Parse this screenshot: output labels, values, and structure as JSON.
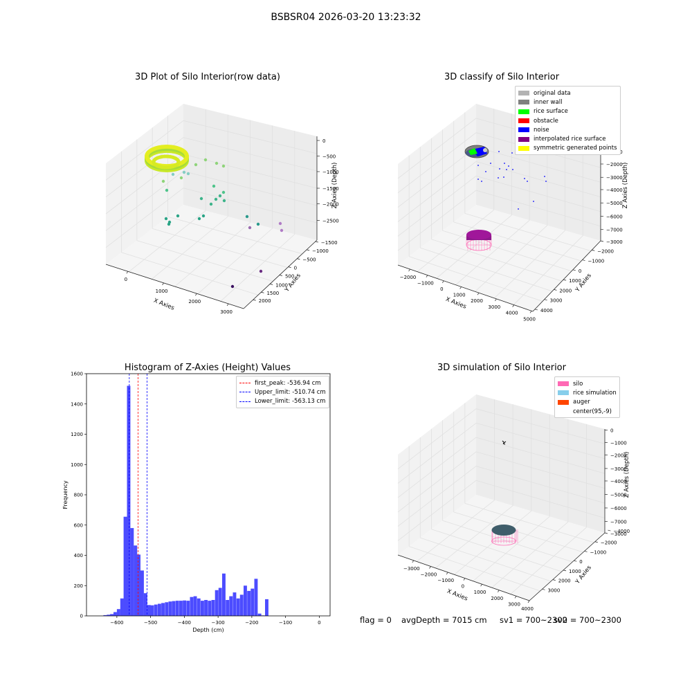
{
  "figure": {
    "suptitle": "BSBSR04 2026-03-20 13:23:32",
    "status": {
      "flag": "flag = 0",
      "avg_depth": "avgDepth = 7015 cm",
      "sv1": "sv1 = 700~2300",
      "sv2": "sv2 = 700~2300"
    }
  },
  "chart_data": [
    {
      "type": "scatter",
      "title": "3D Plot of Silo Interior(row data)",
      "xlabel": "X Axies",
      "ylabel": "Y Axies",
      "zlabel": "Z Axies (Depth)",
      "xticks": [
        "0",
        "1000",
        "2000",
        "3000"
      ],
      "yticks": [
        "2000",
        "1500",
        "1000",
        "500",
        "0",
        "−500",
        "−1000",
        "−1500"
      ],
      "zticks": [
        "0",
        "−500",
        "−1000",
        "−1500",
        "−2000",
        "−2500"
      ]
    },
    {
      "type": "scatter",
      "title": "3D classify of Silo Interior",
      "xlabel": "X Axies",
      "ylabel": "Y Axies",
      "zlabel": "Z Axies (Depth)",
      "xticks": [
        "−2000",
        "−1000",
        "0",
        "1000",
        "2000",
        "3000",
        "4000",
        "5000"
      ],
      "yticks": [
        "4000",
        "3000",
        "2000",
        "1000",
        "0",
        "−1000",
        "−2000",
        "−3000"
      ],
      "zticks": [
        "0",
        "−1000",
        "−2000",
        "−3000",
        "−4000",
        "−5000",
        "−6000",
        "−7000"
      ],
      "legend": [
        {
          "label": "original data",
          "color": "#b3b3b3"
        },
        {
          "label": "inner wall",
          "color": "#808080"
        },
        {
          "label": "rice surface",
          "color": "#00ff00"
        },
        {
          "label": "obstacle",
          "color": "#ff0000"
        },
        {
          "label": "noise",
          "color": "#0000ff"
        },
        {
          "label": "interpolated rice surface",
          "color": "#800080"
        },
        {
          "label": "symmetric generated points",
          "color": "#ffff00"
        }
      ]
    },
    {
      "type": "bar",
      "title": "Histogram of Z-Axies (Height) Values",
      "xlabel": "Depth (cm)",
      "ylabel": "Frequency",
      "xlim": [
        -690,
        32
      ],
      "ylim": [
        0,
        1600
      ],
      "xticks": [
        -600,
        -500,
        -400,
        -300,
        -200,
        -100,
        0
      ],
      "yticks": [
        0,
        200,
        400,
        600,
        800,
        1000,
        1200,
        1400,
        1600
      ],
      "bin_width": 10.1,
      "bins": [
        [
          -640,
          5
        ],
        [
          -630,
          8
        ],
        [
          -620,
          12
        ],
        [
          -610,
          25
        ],
        [
          -600,
          45
        ],
        [
          -590,
          115
        ],
        [
          -580,
          655
        ],
        [
          -570,
          1520
        ],
        [
          -560,
          580
        ],
        [
          -550,
          465
        ],
        [
          -540,
          405
        ],
        [
          -530,
          300
        ],
        [
          -520,
          150
        ],
        [
          -510,
          72
        ],
        [
          -500,
          70
        ],
        [
          -490,
          75
        ],
        [
          -480,
          80
        ],
        [
          -470,
          85
        ],
        [
          -460,
          90
        ],
        [
          -450,
          95
        ],
        [
          -440,
          98
        ],
        [
          -430,
          100
        ],
        [
          -420,
          100
        ],
        [
          -410,
          102
        ],
        [
          -400,
          100
        ],
        [
          -390,
          125
        ],
        [
          -380,
          130
        ],
        [
          -370,
          115
        ],
        [
          -360,
          100
        ],
        [
          -350,
          105
        ],
        [
          -340,
          100
        ],
        [
          -330,
          105
        ],
        [
          -320,
          170
        ],
        [
          -310,
          185
        ],
        [
          -300,
          280
        ],
        [
          -290,
          105
        ],
        [
          -280,
          130
        ],
        [
          -270,
          155
        ],
        [
          -260,
          115
        ],
        [
          -250,
          140
        ],
        [
          -240,
          200
        ],
        [
          -230,
          165
        ],
        [
          -220,
          180
        ],
        [
          -210,
          245
        ],
        [
          -200,
          15
        ],
        [
          -190,
          3
        ],
        [
          -180,
          110
        ]
      ],
      "lines": [
        {
          "label": "first_peak: -536.94 cm",
          "value": -536.94,
          "color": "#ff0000"
        },
        {
          "label": "Upper_limit: -510.74 cm",
          "value": -510.74,
          "color": "#0000ff"
        },
        {
          "label": "Lower_limit: -563.13 cm",
          "value": -563.13,
          "color": "#0000ff"
        }
      ]
    },
    {
      "type": "scatter",
      "title": "3D simulation of Silo Interior",
      "xlabel": "X Axies",
      "ylabel": "Y Axies",
      "zlabel": "Z Axies (Depth)",
      "xticks": [
        "−3000",
        "−2000",
        "−1000",
        "0",
        "1000",
        "2000",
        "3000",
        "4000"
      ],
      "yticks": [
        "3000",
        "2000",
        "1000",
        "0",
        "−1000",
        "−2000",
        "−3000",
        "−4000"
      ],
      "zticks": [
        "0",
        "−1000",
        "−2000",
        "−3000",
        "−4000",
        "−5000",
        "−6000",
        "−7000"
      ],
      "legend": [
        {
          "label": "silo",
          "color": "#ff69b4"
        },
        {
          "label": "rice simulation",
          "color": "#87ceeb"
        },
        {
          "label": "auger",
          "color": "#ff4500"
        },
        {
          "label": "center(95,-9)",
          "color": ""
        }
      ]
    }
  ]
}
